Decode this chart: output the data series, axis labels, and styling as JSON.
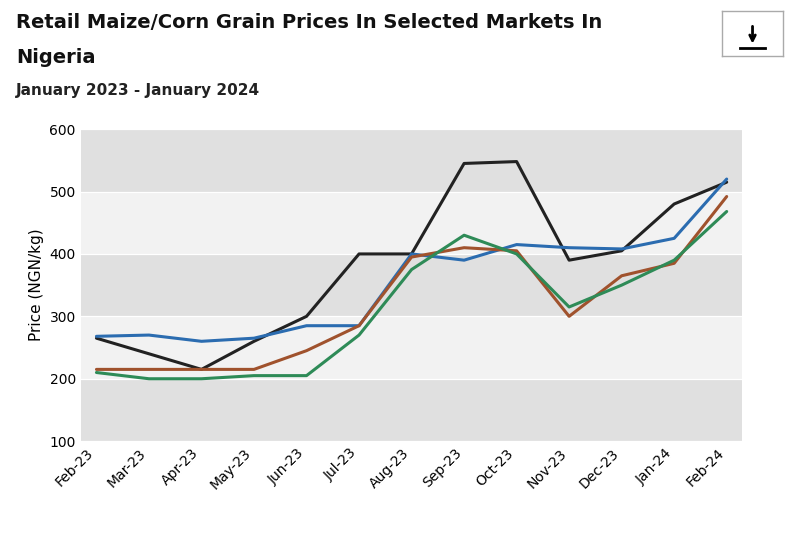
{
  "title_line1": "Retail Maize/Corn Grain Prices In Selected Markets In",
  "title_line2": "Nigeria",
  "subtitle": "January 2023 - January 2024",
  "ylabel": "Price (NGN/kg)",
  "ylim": [
    100,
    600
  ],
  "yticks": [
    100,
    200,
    300,
    400,
    500,
    600
  ],
  "x_labels": [
    "Feb-23",
    "Mar-23",
    "Apr-23",
    "May-23",
    "Jun-23",
    "Jul-23",
    "Aug-23",
    "Sep-23",
    "Oct-23",
    "Nov-23",
    "Dec-23",
    "Jan-24",
    "Feb-24"
  ],
  "series": [
    {
      "name": "Black",
      "color": "#222222",
      "linewidth": 2.2,
      "values": [
        265,
        240,
        215,
        260,
        300,
        400,
        400,
        545,
        548,
        390,
        405,
        480,
        515
      ]
    },
    {
      "name": "Blue",
      "color": "#2b6cb0",
      "linewidth": 2.2,
      "values": [
        268,
        270,
        260,
        265,
        285,
        285,
        400,
        390,
        415,
        410,
        408,
        425,
        520
      ]
    },
    {
      "name": "Brown",
      "color": "#a0522d",
      "linewidth": 2.2,
      "values": [
        215,
        215,
        215,
        215,
        245,
        285,
        395,
        410,
        405,
        300,
        365,
        385,
        492
      ]
    },
    {
      "name": "Green",
      "color": "#2e8b57",
      "linewidth": 2.2,
      "values": [
        210,
        200,
        200,
        205,
        205,
        270,
        375,
        430,
        400,
        315,
        350,
        390,
        468
      ]
    }
  ],
  "bg_color": "#ffffff",
  "plot_bg_color": "#ebebeb",
  "band_light": "#f2f2f2",
  "band_dark": "#e0e0e0",
  "title_fontsize": 14,
  "subtitle_fontsize": 11,
  "axis_label_fontsize": 11,
  "tick_fontsize": 10
}
